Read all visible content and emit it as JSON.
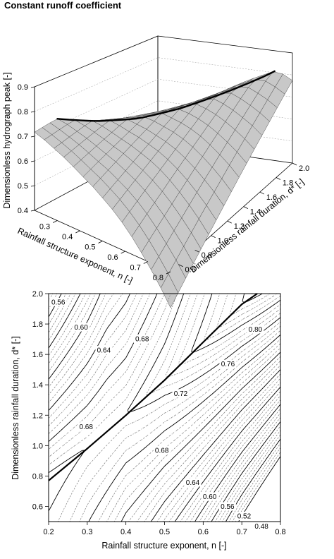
{
  "title": "Constant runoff coefficient",
  "chart_data": [
    {
      "type": "surface3d",
      "panel": "top",
      "title": "Constant runoff coefficient",
      "xlabel": "Rainfall structure exponent, n [-]",
      "ylabel": "Dimensionless rainfall duration, d* [-]",
      "zlabel": "Dimensionless hydrograph peak [-]",
      "xlim": [
        0.2,
        0.8
      ],
      "ylim": [
        0.5,
        2.0
      ],
      "zlim": [
        0.4,
        0.9
      ],
      "x_ticks": [
        0.3,
        0.4,
        0.5,
        0.6,
        0.7,
        0.8
      ],
      "x_tick_labels": [
        "0.3",
        "0.4",
        "0.5",
        "0.6",
        "0.7",
        "0.8"
      ],
      "y_ticks": [
        0.6,
        0.8,
        1.0,
        1.2,
        1.4,
        1.6,
        1.8,
        2.0
      ],
      "y_tick_labels": [
        "0.6",
        "0.8",
        "1.0",
        "1.2",
        "1.4",
        "1.6",
        "1.8",
        "2.0"
      ],
      "z_ticks": [
        0.4,
        0.5,
        0.6,
        0.7,
        0.8,
        0.9
      ],
      "z_tick_labels": [
        "0.4",
        "0.5",
        "0.6",
        "0.7",
        "0.8",
        "0.9"
      ],
      "surface_samples": [
        {
          "n": 0.2,
          "d": 0.5,
          "z": 0.68
        },
        {
          "n": 0.2,
          "d": 2.0,
          "z": 0.73
        },
        {
          "n": 0.8,
          "d": 0.5,
          "z": 0.4
        },
        {
          "n": 0.8,
          "d": 2.0,
          "z": 0.81
        },
        {
          "n": 0.8,
          "d": 1.3,
          "z": 0.73
        }
      ],
      "optimum_curve": [
        {
          "n": 0.2,
          "d": 0.77,
          "z": 0.73
        },
        {
          "n": 0.3,
          "d": 0.98,
          "z": 0.72
        },
        {
          "n": 0.4,
          "d": 1.2,
          "z": 0.72
        },
        {
          "n": 0.5,
          "d": 1.43,
          "z": 0.74
        },
        {
          "n": 0.6,
          "d": 1.68,
          "z": 0.77
        },
        {
          "n": 0.7,
          "d": 1.93,
          "z": 0.8
        }
      ],
      "grid": true,
      "surface_color": "#c8c8c8",
      "curve_color": "#000000"
    },
    {
      "type": "contour",
      "panel": "bottom",
      "xlabel": "Rainfall structure exponent, n [-]",
      "ylabel": "Dimensionless rainfall duration, d* [-]",
      "xlim": [
        0.2,
        0.8
      ],
      "ylim": [
        0.5,
        2.0
      ],
      "x_ticks": [
        0.2,
        0.3,
        0.4,
        0.5,
        0.6,
        0.7,
        0.8
      ],
      "x_tick_labels": [
        "0.2",
        "0.3",
        "0.4",
        "0.5",
        "0.6",
        "0.7",
        "0.8"
      ],
      "y_ticks": [
        0.6,
        0.8,
        1.0,
        1.2,
        1.4,
        1.6,
        1.8,
        2.0
      ],
      "y_tick_labels": [
        "0.6",
        "0.8",
        "1.0",
        "1.2",
        "1.4",
        "1.6",
        "1.8",
        "2.0"
      ],
      "labeled_levels": [
        {
          "label": "0.56",
          "n": 0.225,
          "d": 1.945
        },
        {
          "label": "0.60",
          "n": 0.284,
          "d": 1.779
        },
        {
          "label": "0.64",
          "n": 0.343,
          "d": 1.628
        },
        {
          "label": "0.68",
          "n": 0.442,
          "d": 1.703
        },
        {
          "label": "0.68",
          "n": 0.297,
          "d": 1.125
        },
        {
          "label": "0.72",
          "n": 0.542,
          "d": 1.344
        },
        {
          "label": "0.76",
          "n": 0.664,
          "d": 1.537
        },
        {
          "label": "0.80",
          "n": 0.735,
          "d": 1.765
        },
        {
          "label": "0.68",
          "n": 0.493,
          "d": 0.97
        },
        {
          "label": "0.64",
          "n": 0.573,
          "d": 0.758
        },
        {
          "label": "0.60",
          "n": 0.617,
          "d": 0.664
        },
        {
          "label": "0.56",
          "n": 0.663,
          "d": 0.6
        },
        {
          "label": "0.52",
          "n": 0.706,
          "d": 0.537
        },
        {
          "label": "0.48",
          "n": 0.751,
          "d": 0.47
        }
      ],
      "optimum_line": [
        {
          "n": 0.2,
          "d": 0.77
        },
        {
          "n": 0.3,
          "d": 0.98
        },
        {
          "n": 0.4,
          "d": 1.2
        },
        {
          "n": 0.5,
          "d": 1.43
        },
        {
          "n": 0.6,
          "d": 1.68
        },
        {
          "n": 0.7,
          "d": 1.93
        },
        {
          "n": 0.74,
          "d": 2.0
        }
      ],
      "line_color": "#000000",
      "dotted_color": "#777777"
    }
  ]
}
